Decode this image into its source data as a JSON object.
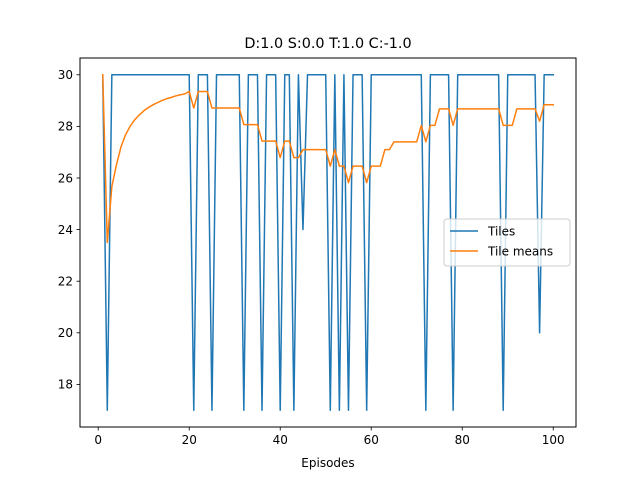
{
  "chart_data": {
    "type": "line",
    "title": "D:1.0 S:0.0 T:1.0 C:-1.0",
    "xlabel": "Episodes",
    "ylabel": "",
    "xlim": [
      -4,
      105
    ],
    "ylim": [
      16.35,
      30.65
    ],
    "xticks": [
      0,
      20,
      40,
      60,
      80,
      100
    ],
    "yticks": [
      18,
      20,
      22,
      24,
      26,
      28,
      30
    ],
    "grid": false,
    "legend_position": "center-right",
    "x": [
      1,
      2,
      3,
      4,
      5,
      6,
      7,
      8,
      9,
      10,
      11,
      12,
      13,
      14,
      15,
      16,
      17,
      18,
      19,
      20,
      21,
      22,
      23,
      24,
      25,
      26,
      27,
      28,
      29,
      30,
      31,
      32,
      33,
      34,
      35,
      36,
      37,
      38,
      39,
      40,
      41,
      42,
      43,
      44,
      45,
      46,
      47,
      48,
      49,
      50,
      51,
      52,
      53,
      54,
      55,
      56,
      57,
      58,
      59,
      60,
      61,
      62,
      63,
      64,
      65,
      66,
      67,
      68,
      69,
      70,
      71,
      72,
      73,
      74,
      75,
      76,
      77,
      78,
      79,
      80,
      81,
      82,
      83,
      84,
      85,
      86,
      87,
      88,
      89,
      90,
      91,
      92,
      93,
      94,
      95,
      96,
      97,
      98,
      99,
      100
    ],
    "series": [
      {
        "name": "Tiles",
        "color": "#1f77b4",
        "values": [
          30,
          17,
          30,
          30,
          30,
          30,
          30,
          30,
          30,
          30,
          30,
          30,
          30,
          30,
          30,
          30,
          30,
          30,
          30,
          30,
          17,
          30,
          30,
          30,
          17,
          30,
          30,
          30,
          30,
          30,
          30,
          17,
          30,
          30,
          30,
          17,
          30,
          30,
          30,
          17,
          30,
          30,
          17,
          30,
          24,
          30,
          30,
          30,
          30,
          30,
          17,
          30,
          17,
          30,
          17,
          30,
          30,
          30,
          17,
          30,
          30,
          30,
          30,
          30,
          30,
          30,
          30,
          30,
          30,
          30,
          30,
          17,
          30,
          30,
          30,
          30,
          30,
          17,
          30,
          30,
          30,
          30,
          30,
          30,
          30,
          30,
          30,
          30,
          17,
          30,
          30,
          30,
          30,
          30,
          30,
          30,
          20,
          30,
          30,
          30
        ]
      },
      {
        "name": "Tile means",
        "color": "#ff7f0e",
        "values": [
          30,
          23.5,
          25.67,
          26.5,
          27.2,
          27.67,
          28.0,
          28.25,
          28.44,
          28.6,
          28.73,
          28.83,
          28.92,
          29.0,
          29.07,
          29.12,
          29.18,
          29.22,
          29.26,
          29.35,
          28.71,
          29.35,
          29.35,
          29.35,
          28.71,
          28.71,
          28.71,
          28.71,
          28.71,
          28.71,
          28.71,
          28.07,
          28.07,
          28.07,
          28.07,
          27.43,
          27.43,
          27.43,
          27.43,
          26.79,
          27.43,
          27.43,
          26.79,
          26.79,
          27.1,
          27.1,
          27.1,
          27.1,
          27.1,
          27.1,
          26.46,
          27.1,
          26.46,
          26.46,
          25.82,
          26.46,
          26.46,
          26.46,
          25.82,
          26.46,
          26.46,
          26.46,
          27.1,
          27.1,
          27.4,
          27.4,
          27.4,
          27.4,
          27.4,
          27.4,
          28.04,
          27.4,
          28.04,
          28.04,
          28.68,
          28.68,
          28.68,
          28.04,
          28.68,
          28.68,
          28.68,
          28.68,
          28.68,
          28.68,
          28.68,
          28.68,
          28.68,
          28.68,
          28.04,
          28.04,
          28.04,
          28.68,
          28.68,
          28.68,
          28.68,
          28.68,
          28.2,
          28.84,
          28.84,
          28.84
        ]
      }
    ]
  }
}
